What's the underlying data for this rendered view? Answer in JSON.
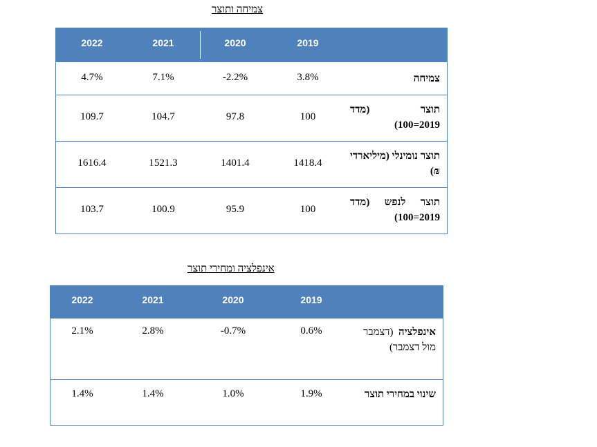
{
  "table1": {
    "title": "צמיחה ותוצר",
    "headers": [
      "2022",
      "2021",
      "2020",
      "2019"
    ],
    "rows": [
      {
        "label": "צמיחה",
        "values": [
          "4.7%",
          "7.1%",
          "-2.2%",
          "3.8%"
        ]
      },
      {
        "label": "תוצר (מדד 2019=100)",
        "values": [
          "109.7",
          "104.7",
          "97.8",
          "100"
        ]
      },
      {
        "label": "תוצר נומינלי (מיליארדי ₪)",
        "values": [
          "1616.4",
          "1521.3",
          "1401.4",
          "1418.4"
        ]
      },
      {
        "label": "תוצר לנפש (מדד 2019=100)",
        "values": [
          "103.7",
          "100.9",
          "95.9",
          "100"
        ]
      }
    ]
  },
  "table2": {
    "title": "אינפלציה ומחירי תוצר",
    "headers": [
      "2022",
      "2021",
      "2020",
      "2019"
    ],
    "rows": [
      {
        "label_bold": "אינפלציה",
        "label_rest": "(דצמבר מול דצמבר)",
        "values": [
          "2.1%",
          "2.8%",
          "-0.7%",
          "0.6%"
        ]
      },
      {
        "label": "שינוי במחירי תוצר",
        "values": [
          "1.4%",
          "1.4%",
          "1.0%",
          "1.9%"
        ]
      }
    ]
  }
}
